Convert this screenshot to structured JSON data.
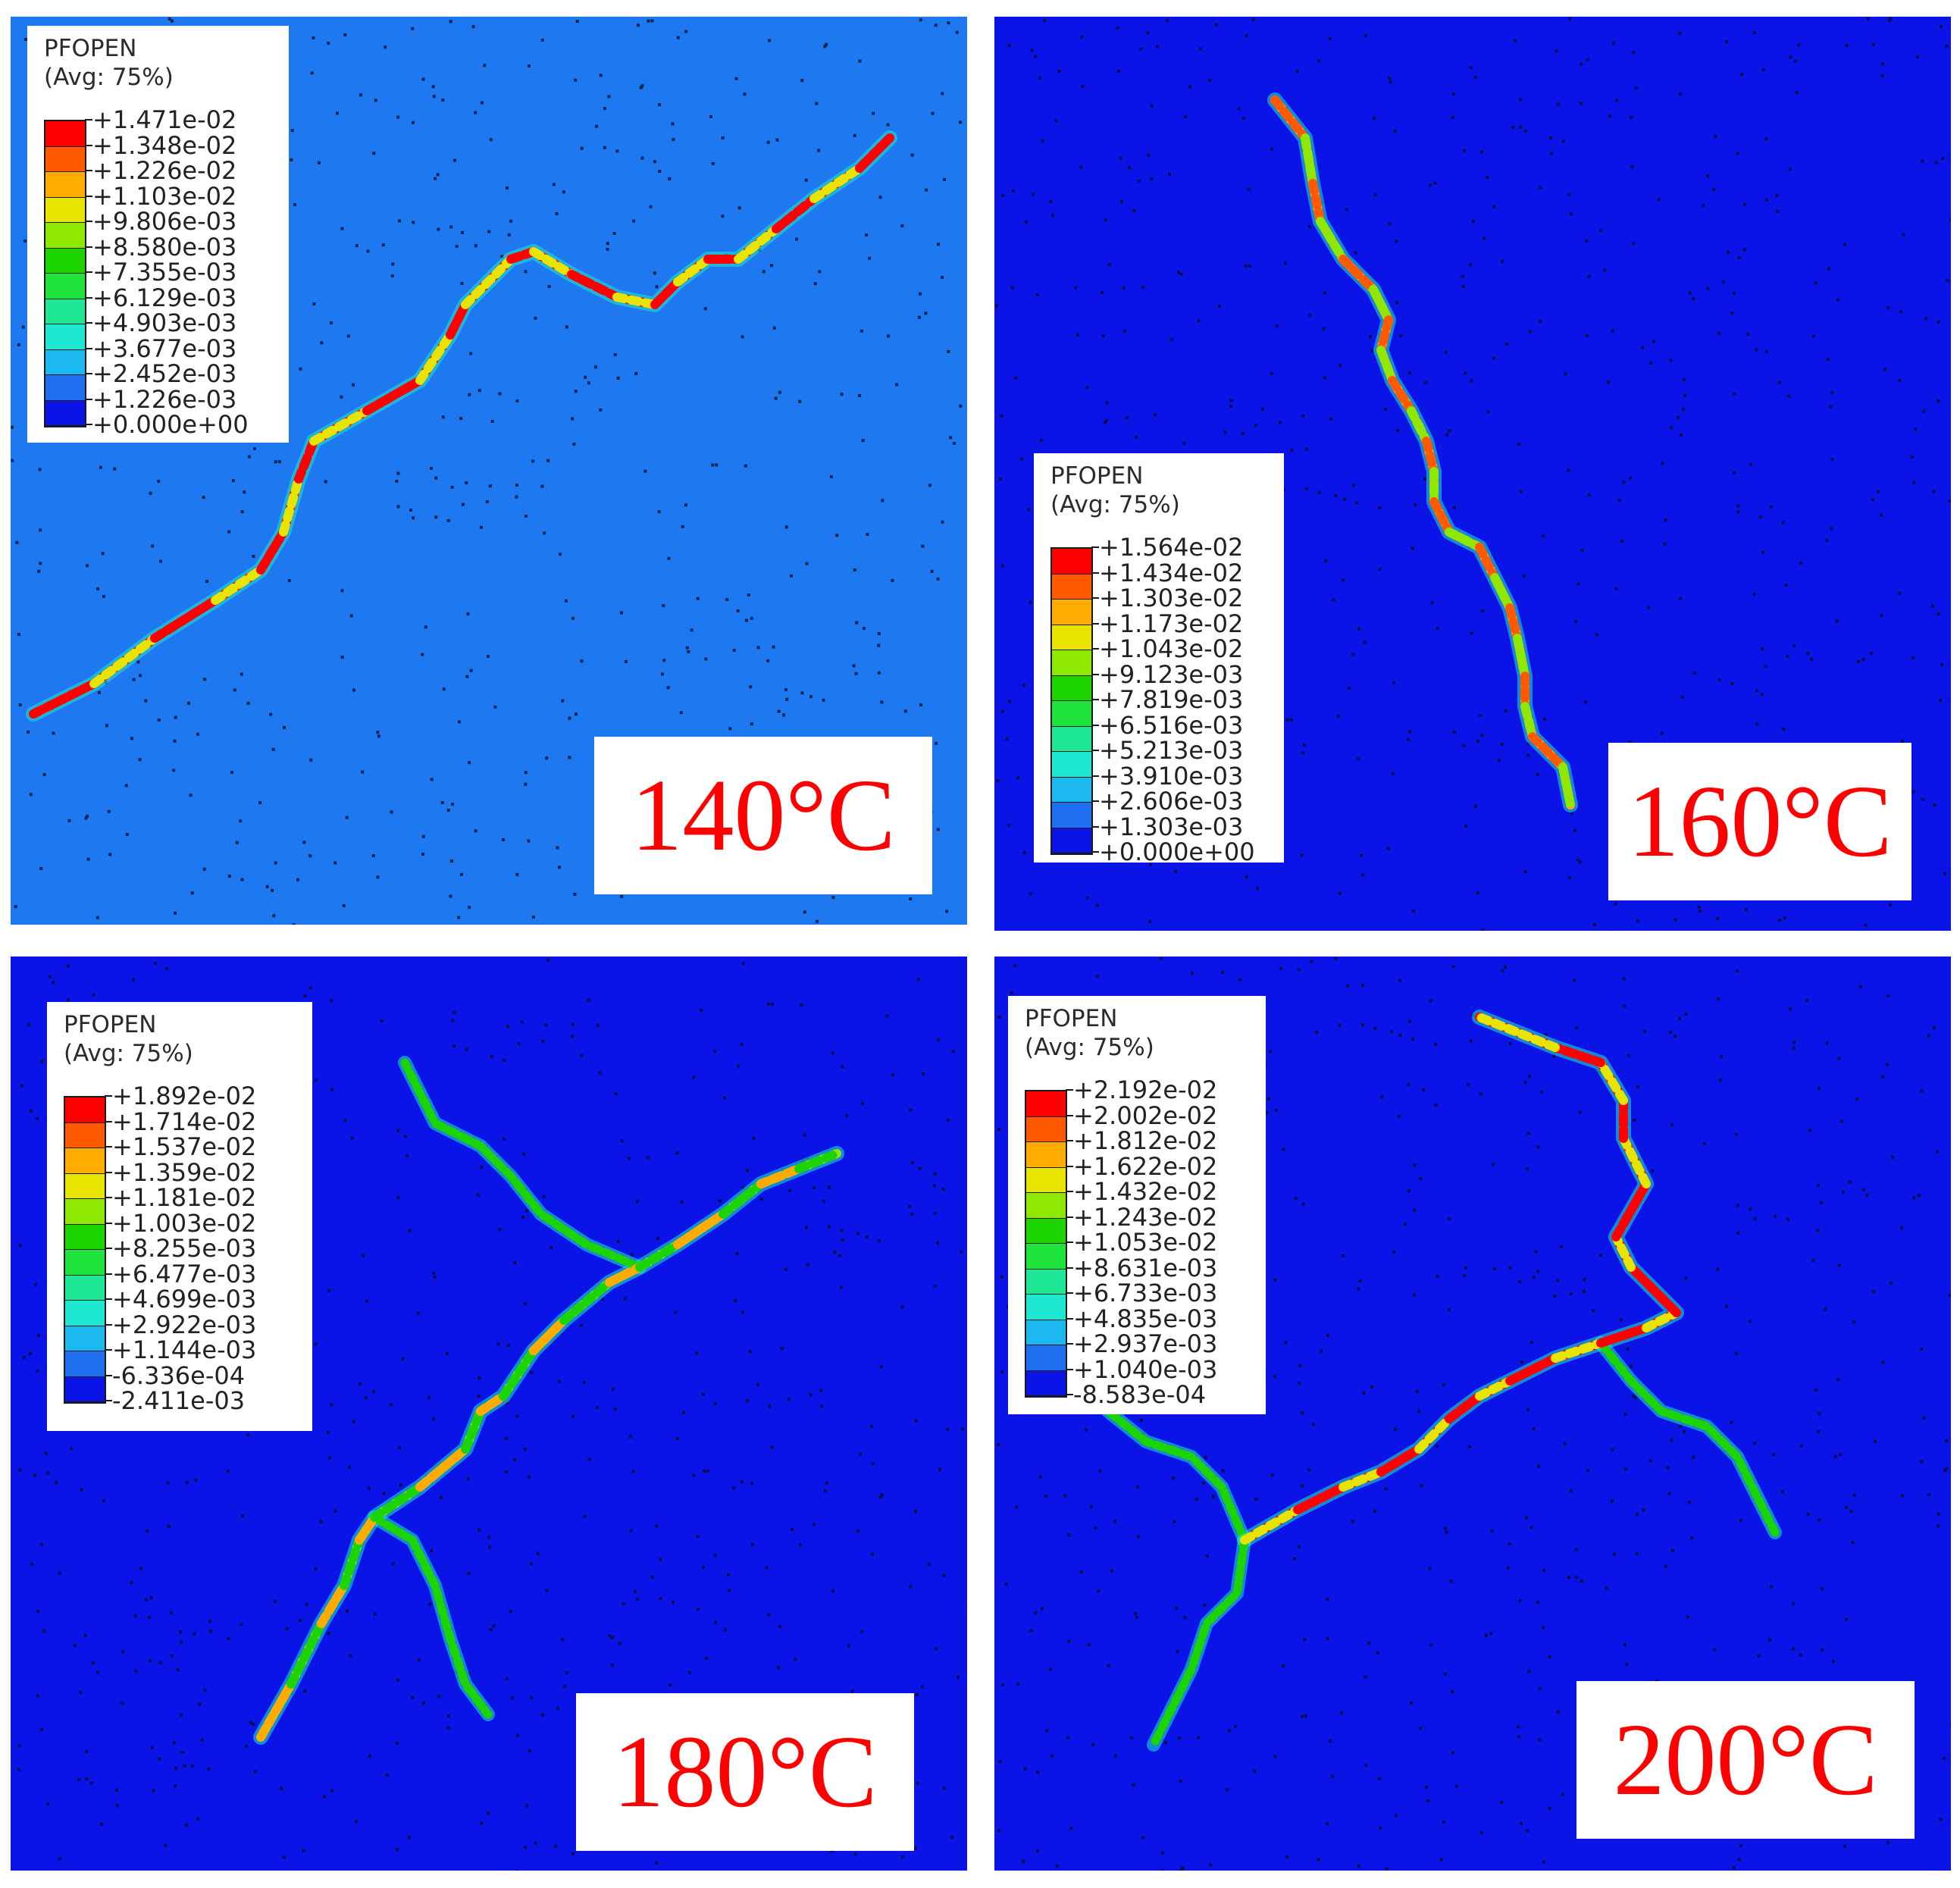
{
  "colors": {
    "panel_bg_light": "#1e78f0",
    "panel_bg_dark": "#0a14e6",
    "temperature_text": "#ff0000",
    "legend_bands": [
      "#ff0000",
      "#ff5a00",
      "#ffab00",
      "#e8e400",
      "#8ee800",
      "#1ed400",
      "#1ee43c",
      "#1ee896",
      "#1ee8d2",
      "#1eb8f0",
      "#1e70f0",
      "#0a14e6"
    ]
  },
  "panels": [
    {
      "id": "140",
      "temperature": "140°C",
      "legend": {
        "variable": "PFOPEN",
        "averaging": "(Avg: 75%)",
        "values": [
          "+1.471e-02",
          "+1.348e-02",
          "+1.226e-02",
          "+1.103e-02",
          "+9.806e-03",
          "+8.580e-03",
          "+7.355e-03",
          "+6.129e-03",
          "+4.903e-03",
          "+3.677e-03",
          "+2.452e-03",
          "+1.226e-03",
          "+0.000e+00"
        ]
      }
    },
    {
      "id": "160",
      "temperature": "160°C",
      "legend": {
        "variable": "PFOPEN",
        "averaging": "(Avg: 75%)",
        "values": [
          "+1.564e-02",
          "+1.434e-02",
          "+1.303e-02",
          "+1.173e-02",
          "+1.043e-02",
          "+9.123e-03",
          "+7.819e-03",
          "+6.516e-03",
          "+5.213e-03",
          "+3.910e-03",
          "+2.606e-03",
          "+1.303e-03",
          "+0.000e+00"
        ]
      }
    },
    {
      "id": "180",
      "temperature": "180°C",
      "legend": {
        "variable": "PFOPEN",
        "averaging": "(Avg: 75%)",
        "values": [
          "+1.892e-02",
          "+1.714e-02",
          "+1.537e-02",
          "+1.359e-02",
          "+1.181e-02",
          "+1.003e-02",
          "+8.255e-03",
          "+6.477e-03",
          "+4.699e-03",
          "+2.922e-03",
          "+1.144e-03",
          "-6.336e-04",
          "-2.411e-03"
        ]
      }
    },
    {
      "id": "200",
      "temperature": "200°C",
      "legend": {
        "variable": "PFOPEN",
        "averaging": "(Avg: 75%)",
        "values": [
          "+2.192e-02",
          "+2.002e-02",
          "+1.812e-02",
          "+1.622e-02",
          "+1.432e-02",
          "+1.243e-02",
          "+1.053e-02",
          "+8.631e-03",
          "+6.733e-03",
          "+4.835e-03",
          "+2.937e-03",
          "+1.040e-03",
          "-8.583e-04"
        ]
      }
    }
  ]
}
